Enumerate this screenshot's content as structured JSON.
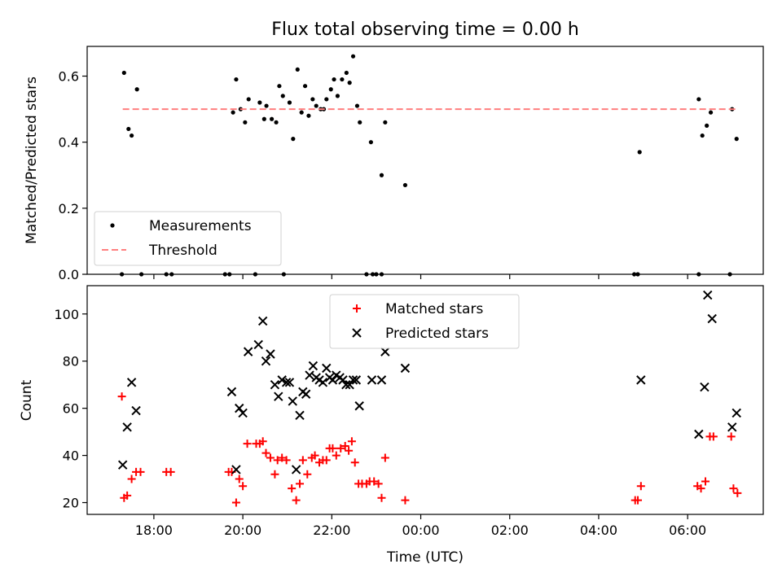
{
  "chart_data": [
    {
      "type": "scatter",
      "title": "Flux total observing time = 0.00 h",
      "xlabel": "",
      "ylabel": "Matched/Predicted stars",
      "xlim": [
        16.5,
        31.7
      ],
      "ylim": [
        0,
        0.69
      ],
      "yticks": [
        0.0,
        0.2,
        0.4,
        0.6
      ],
      "ytick_labels": [
        "0.0",
        "0.2",
        "0.4",
        "0.6"
      ],
      "xticks": [
        18,
        20,
        22,
        24,
        26,
        28,
        30
      ],
      "show_xtick_labels": false,
      "grid": false,
      "legend": {
        "position": "lower-left",
        "entries": [
          {
            "label": "Measurements",
            "marker": "dot",
            "color": "#000000"
          },
          {
            "label": "Threshold",
            "marker": "dashed-line",
            "color": "#ff7f7f"
          }
        ]
      },
      "series": [
        {
          "name": "Measurements",
          "color": "#000000",
          "points": [
            [
              17.33,
              0.61
            ],
            [
              17.43,
              0.44
            ],
            [
              17.5,
              0.42
            ],
            [
              17.62,
              0.56
            ],
            [
              19.78,
              0.49
            ],
            [
              19.85,
              0.59
            ],
            [
              19.95,
              0.5
            ],
            [
              20.05,
              0.46
            ],
            [
              20.13,
              0.53
            ],
            [
              20.38,
              0.52
            ],
            [
              20.48,
              0.47
            ],
            [
              20.53,
              0.51
            ],
            [
              20.65,
              0.47
            ],
            [
              20.75,
              0.46
            ],
            [
              20.82,
              0.57
            ],
            [
              20.9,
              0.54
            ],
            [
              21.05,
              0.52
            ],
            [
              21.13,
              0.41
            ],
            [
              21.23,
              0.62
            ],
            [
              21.32,
              0.49
            ],
            [
              21.4,
              0.57
            ],
            [
              21.48,
              0.48
            ],
            [
              21.57,
              0.53
            ],
            [
              21.65,
              0.51
            ],
            [
              21.75,
              0.5
            ],
            [
              21.82,
              0.5
            ],
            [
              21.88,
              0.53
            ],
            [
              21.98,
              0.56
            ],
            [
              22.05,
              0.59
            ],
            [
              22.13,
              0.54
            ],
            [
              22.23,
              0.59
            ],
            [
              22.33,
              0.61
            ],
            [
              22.4,
              0.58
            ],
            [
              22.48,
              0.66
            ],
            [
              22.57,
              0.51
            ],
            [
              22.63,
              0.46
            ],
            [
              22.88,
              0.4
            ],
            [
              23.12,
              0.3
            ],
            [
              23.2,
              0.46
            ],
            [
              23.65,
              0.27
            ],
            [
              28.92,
              0.37
            ],
            [
              30.25,
              0.53
            ],
            [
              30.33,
              0.42
            ],
            [
              30.43,
              0.45
            ],
            [
              30.52,
              0.49
            ],
            [
              31.0,
              0.5
            ],
            [
              31.1,
              0.41
            ],
            [
              17.28,
              0.0
            ],
            [
              17.72,
              0.0
            ],
            [
              18.28,
              0.0
            ],
            [
              18.4,
              0.0
            ],
            [
              19.6,
              0.0
            ],
            [
              19.7,
              0.0
            ],
            [
              20.28,
              0.0
            ],
            [
              20.92,
              0.0
            ],
            [
              22.78,
              0.0
            ],
            [
              22.92,
              0.0
            ],
            [
              23.0,
              0.0
            ],
            [
              23.12,
              0.0
            ],
            [
              28.8,
              0.0
            ],
            [
              28.88,
              0.0
            ],
            [
              30.25,
              0.0
            ],
            [
              30.95,
              0.0
            ]
          ]
        },
        {
          "name": "Threshold",
          "color": "#ff7f7f",
          "line": "dashed",
          "points": [
            [
              17.3,
              0.5
            ],
            [
              31.1,
              0.5
            ]
          ]
        }
      ]
    },
    {
      "type": "scatter",
      "title": "",
      "xlabel": "Time (UTC)",
      "ylabel": "Count",
      "xlim": [
        16.5,
        31.7
      ],
      "ylim": [
        15,
        112
      ],
      "yticks": [
        20,
        40,
        60,
        80,
        100
      ],
      "ytick_labels": [
        "20",
        "40",
        "60",
        "80",
        "100"
      ],
      "xticks": [
        18,
        20,
        22,
        24,
        26,
        28,
        30
      ],
      "xtick_labels": [
        "18:00",
        "20:00",
        "22:00",
        "00:00",
        "02:00",
        "04:00",
        "06:00"
      ],
      "grid": false,
      "legend": {
        "position": "upper-center",
        "entries": [
          {
            "label": "Matched stars",
            "marker": "plus",
            "color": "#ff0000"
          },
          {
            "label": "Predicted stars",
            "marker": "x",
            "color": "#000000"
          }
        ]
      },
      "series": [
        {
          "name": "Matched stars",
          "color": "#ff0000",
          "marker": "plus",
          "points": [
            [
              17.28,
              65
            ],
            [
              17.33,
              22
            ],
            [
              17.4,
              23
            ],
            [
              17.5,
              30
            ],
            [
              17.6,
              33
            ],
            [
              17.7,
              33
            ],
            [
              18.28,
              33
            ],
            [
              18.38,
              33
            ],
            [
              19.68,
              33
            ],
            [
              19.75,
              33
            ],
            [
              19.85,
              20
            ],
            [
              19.92,
              30
            ],
            [
              20.0,
              27
            ],
            [
              20.1,
              45
            ],
            [
              20.3,
              45
            ],
            [
              20.38,
              45
            ],
            [
              20.45,
              46
            ],
            [
              20.52,
              41
            ],
            [
              20.62,
              39
            ],
            [
              20.72,
              32
            ],
            [
              20.78,
              38
            ],
            [
              20.88,
              39
            ],
            [
              20.98,
              38
            ],
            [
              21.1,
              26
            ],
            [
              21.2,
              21
            ],
            [
              21.28,
              28
            ],
            [
              21.35,
              38
            ],
            [
              21.45,
              32
            ],
            [
              21.55,
              39
            ],
            [
              21.62,
              40
            ],
            [
              21.72,
              37
            ],
            [
              21.8,
              38
            ],
            [
              21.88,
              38
            ],
            [
              21.95,
              43
            ],
            [
              22.02,
              43
            ],
            [
              22.1,
              40
            ],
            [
              22.2,
              43
            ],
            [
              22.3,
              44
            ],
            [
              22.38,
              42
            ],
            [
              22.45,
              46
            ],
            [
              22.52,
              37
            ],
            [
              22.6,
              28
            ],
            [
              22.68,
              28
            ],
            [
              22.78,
              28
            ],
            [
              22.85,
              29
            ],
            [
              22.95,
              29
            ],
            [
              23.05,
              28
            ],
            [
              23.12,
              22
            ],
            [
              23.2,
              39
            ],
            [
              23.65,
              21
            ],
            [
              28.82,
              21
            ],
            [
              28.88,
              21
            ],
            [
              28.95,
              27
            ],
            [
              30.22,
              27
            ],
            [
              30.3,
              26
            ],
            [
              30.4,
              29
            ],
            [
              30.5,
              48
            ],
            [
              30.58,
              48
            ],
            [
              30.98,
              48
            ],
            [
              31.03,
              26
            ],
            [
              31.12,
              24
            ]
          ]
        },
        {
          "name": "Predicted stars",
          "color": "#000000",
          "marker": "x",
          "points": [
            [
              17.3,
              36
            ],
            [
              17.4,
              52
            ],
            [
              17.5,
              71
            ],
            [
              17.6,
              59
            ],
            [
              19.75,
              67
            ],
            [
              19.85,
              34
            ],
            [
              19.92,
              60
            ],
            [
              20.0,
              58
            ],
            [
              20.12,
              84
            ],
            [
              20.35,
              87
            ],
            [
              20.45,
              97
            ],
            [
              20.52,
              80
            ],
            [
              20.62,
              83
            ],
            [
              20.72,
              70
            ],
            [
              20.8,
              65
            ],
            [
              20.88,
              72
            ],
            [
              20.98,
              71
            ],
            [
              21.05,
              71
            ],
            [
              21.12,
              63
            ],
            [
              21.2,
              34
            ],
            [
              21.28,
              57
            ],
            [
              21.35,
              67
            ],
            [
              21.42,
              66
            ],
            [
              21.5,
              74
            ],
            [
              21.58,
              78
            ],
            [
              21.65,
              73
            ],
            [
              21.72,
              72
            ],
            [
              21.8,
              71
            ],
            [
              21.88,
              77
            ],
            [
              21.95,
              73
            ],
            [
              22.02,
              72
            ],
            [
              22.1,
              74
            ],
            [
              22.18,
              73
            ],
            [
              22.25,
              72
            ],
            [
              22.32,
              70
            ],
            [
              22.4,
              70
            ],
            [
              22.48,
              72
            ],
            [
              22.55,
              72
            ],
            [
              22.62,
              61
            ],
            [
              22.9,
              72
            ],
            [
              23.12,
              72
            ],
            [
              23.2,
              84
            ],
            [
              23.65,
              77
            ],
            [
              28.95,
              72
            ],
            [
              30.25,
              49
            ],
            [
              30.38,
              69
            ],
            [
              30.45,
              108
            ],
            [
              30.55,
              98
            ],
            [
              31.0,
              52
            ],
            [
              31.1,
              58
            ]
          ]
        }
      ]
    }
  ]
}
